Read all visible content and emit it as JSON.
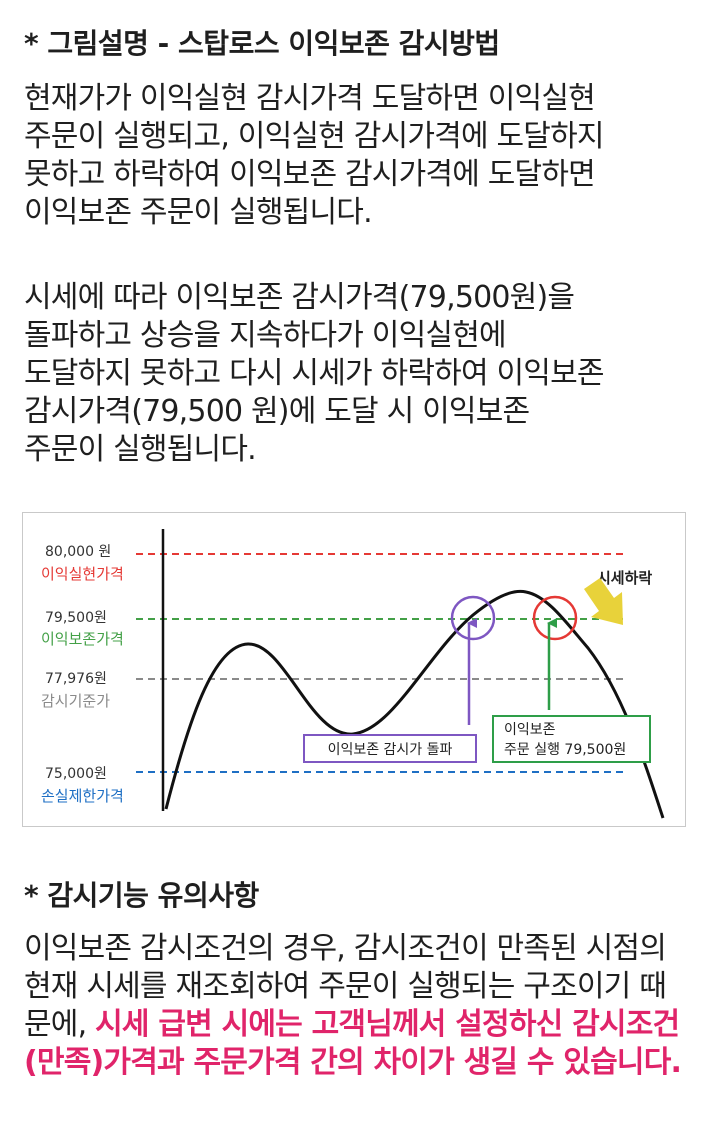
{
  "section1": {
    "title": "* 그림설명 - 스탑로스 이익보존 감시방법",
    "lines1": [
      "현재가가 이익실현 감시가격 도달하면 이익실현",
      "주문이 실행되고, 이익실현 감시가격에 도달하지",
      "못하고 하락하여 이익보존 감시가격에 도달하면",
      "이익보존 주문이 실행됩니다."
    ],
    "lines2": [
      "시세에 따라 이익보존 감시가격(79,500원)을",
      "돌파하고 상승을 지속하다가 이익실현에",
      "도달하지 못하고 다시 시세가 하락하여 이익보존",
      "감시가격(79,500 원)에 도달 시 이익보존",
      "주문이 실행됩니다."
    ]
  },
  "chart": {
    "levels": [
      {
        "price": "80,000 원",
        "name": "이익실현가격",
        "color": "#e53935",
        "name_color": "#e53935"
      },
      {
        "price": "79,500원",
        "name": "이익보존가격",
        "color": "#43a047",
        "name_color": "#43a047"
      },
      {
        "price": "77,976원",
        "name": "감시기준가",
        "color": "#8a8a8a",
        "name_color": "#8a8a8a"
      },
      {
        "price": "75,000원",
        "name": "손실제한가격",
        "color": "#1e6fc4",
        "name_color": "#1e6fc4"
      }
    ],
    "breakout_label": "이익보존 감시가 돌파",
    "execute_label_1": "이익보존",
    "execute_label_2": "주문 실행 79,500원",
    "drop_label": "시세하락",
    "colors": {
      "purple": "#7e57c2",
      "green": "#2e9e48",
      "red": "#e53935",
      "arrow": "#e8d23a"
    }
  },
  "section2": {
    "title": "* 감시기능 유의사항",
    "text_plain": "이익보존 감시조건의 경우, 감시조건이 만족된 시점의 현재 시세를 재조회하여 주문이 실행되는 구조이기 때문에, ",
    "text_highlight": "시세 급변 시에는 고객님께서 설정하신 감시조건(만족)가격과 주문가격 간의 차이가 생길 수 있습니다.",
    "highlight_color": "#e0246a"
  }
}
